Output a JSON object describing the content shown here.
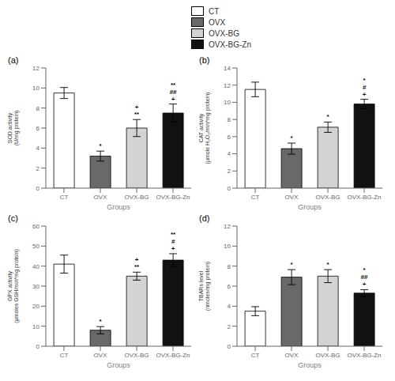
{
  "chart_data": [
    {
      "type": "bar",
      "title": "(a)",
      "ylabel": "SOD activity\n(U/mg protein)",
      "xlabel": "Groups",
      "categories": [
        "CT",
        "OVX",
        "OVX-BG",
        "OVX-BG-Zn"
      ],
      "values": [
        9.5,
        3.2,
        6.0,
        7.5
      ],
      "errors": [
        0.55,
        0.5,
        0.85,
        0.9
      ],
      "annotations": [
        [],
        [
          "*"
        ],
        [
          "+",
          "**"
        ],
        [
          "**",
          "##",
          "+"
        ]
      ],
      "colors": [
        "white",
        "#696969",
        "#d3d3d3",
        "#111111"
      ],
      "ylim": [
        0,
        12
      ],
      "yticks": [
        0,
        2,
        4,
        6,
        8,
        10,
        12
      ],
      "legend": "top"
    },
    {
      "type": "bar",
      "title": "(b)",
      "ylabel": "CAT activity\n(µmole H₂O₂/min*mg protein)",
      "xlabel": "Groups",
      "categories": [
        "CT",
        "OVX",
        "OVX-BG",
        "OVX-BG-Zn"
      ],
      "values": [
        11.5,
        4.6,
        7.1,
        9.8
      ],
      "errors": [
        0.85,
        0.65,
        0.6,
        0.55
      ],
      "annotations": [
        [],
        [
          "*"
        ],
        [
          "*"
        ],
        [
          "*",
          "#",
          "+"
        ]
      ],
      "colors": [
        "white",
        "#696969",
        "#d3d3d3",
        "#111111"
      ],
      "ylim": [
        0,
        14
      ],
      "yticks": [
        0,
        2,
        4,
        6,
        8,
        10,
        12,
        14
      ]
    },
    {
      "type": "bar",
      "title": "(c)",
      "ylabel": "GPX activity\n(µmoles GSH/min*mg protein)",
      "xlabel": "Groups",
      "categories": [
        "CT",
        "OVX",
        "OVX-BG",
        "OVX-BG-Zn"
      ],
      "values": [
        41.0,
        8.0,
        35.0,
        43.0
      ],
      "errors": [
        4.5,
        1.8,
        2.0,
        3.2
      ],
      "annotations": [
        [],
        [
          "*"
        ],
        [
          "+",
          "**"
        ],
        [
          "**",
          "#",
          "+"
        ]
      ],
      "colors": [
        "white",
        "#696969",
        "#d3d3d3",
        "#111111"
      ],
      "ylim": [
        0,
        60
      ],
      "yticks": [
        0,
        10,
        20,
        30,
        40,
        50,
        60
      ]
    },
    {
      "type": "bar",
      "title": "(d)",
      "ylabel": "TBARs level\n(nmoles/mg protein)",
      "xlabel": "Groups",
      "categories": [
        "CT",
        "OVX",
        "OVX-BG",
        "OVX-BG-Zn"
      ],
      "values": [
        3.5,
        6.9,
        7.0,
        5.3
      ],
      "errors": [
        0.45,
        0.75,
        0.65,
        0.35
      ],
      "annotations": [
        [],
        [
          "*"
        ],
        [
          "*"
        ],
        [
          "*",
          "##",
          "+"
        ]
      ],
      "colors": [
        "white",
        "#696969",
        "#d3d3d3",
        "#111111"
      ],
      "ylim": [
        0,
        12
      ],
      "yticks": [
        0,
        2,
        4,
        6,
        8,
        10,
        12
      ]
    }
  ]
}
